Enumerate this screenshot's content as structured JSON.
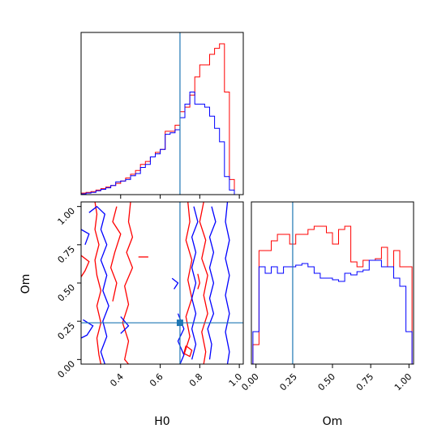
{
  "chart_data": [
    {
      "type": "histogram",
      "panel": "H0 marginal",
      "xlim": [
        0.2,
        1.02
      ],
      "bin_edges": [
        0.2,
        0.225,
        0.25,
        0.275,
        0.3,
        0.325,
        0.35,
        0.375,
        0.4,
        0.425,
        0.45,
        0.475,
        0.5,
        0.525,
        0.55,
        0.575,
        0.6,
        0.625,
        0.65,
        0.675,
        0.7,
        0.725,
        0.75,
        0.775,
        0.8,
        0.825,
        0.85,
        0.875,
        0.9,
        0.925,
        0.95,
        0.975,
        1.0
      ],
      "series": [
        {
          "color": "#ff0000",
          "values": [
            0.01,
            0.015,
            0.02,
            0.03,
            0.04,
            0.05,
            0.06,
            0.075,
            0.09,
            0.11,
            0.135,
            0.16,
            0.2,
            0.22,
            0.25,
            0.28,
            0.3,
            0.42,
            0.42,
            0.46,
            0.55,
            0.58,
            0.66,
            0.78,
            0.86,
            0.86,
            0.93,
            0.97,
            1.0,
            0.68,
            0.1,
            0.0
          ]
        },
        {
          "color": "#0000ff",
          "values": [
            0.005,
            0.01,
            0.015,
            0.025,
            0.035,
            0.045,
            0.06,
            0.085,
            0.09,
            0.1,
            0.125,
            0.14,
            0.18,
            0.2,
            0.25,
            0.27,
            0.3,
            0.4,
            0.41,
            0.43,
            0.51,
            0.6,
            0.68,
            0.6,
            0.6,
            0.58,
            0.52,
            0.44,
            0.35,
            0.12,
            0.03,
            0.0
          ]
        }
      ],
      "truth_line": 0.7
    },
    {
      "type": "histogram",
      "panel": "Om marginal",
      "xlim": [
        -0.03,
        1.03
      ],
      "ticks": [
        "0.00",
        "0.25",
        "0.50",
        "0.75",
        "1.00"
      ],
      "xlabel": "Om",
      "bin_edges": [
        -0.02,
        0.02,
        0.06,
        0.1,
        0.14,
        0.18,
        0.22,
        0.26,
        0.3,
        0.34,
        0.38,
        0.42,
        0.46,
        0.5,
        0.54,
        0.58,
        0.62,
        0.66,
        0.7,
        0.74,
        0.78,
        0.82,
        0.86,
        0.9,
        0.94,
        0.98,
        1.02
      ],
      "series": [
        {
          "color": "#ff0000",
          "values": [
            0.12,
            0.7,
            0.7,
            0.76,
            0.8,
            0.8,
            0.74,
            0.8,
            0.8,
            0.83,
            0.85,
            0.85,
            0.81,
            0.74,
            0.83,
            0.85,
            0.63,
            0.6,
            0.64,
            0.64,
            0.65,
            0.72,
            0.6,
            0.7,
            0.6,
            0.6
          ]
        },
        {
          "color": "#0000ff",
          "values": [
            0.2,
            0.6,
            0.56,
            0.6,
            0.56,
            0.6,
            0.6,
            0.61,
            0.62,
            0.6,
            0.56,
            0.53,
            0.53,
            0.52,
            0.51,
            0.56,
            0.55,
            0.57,
            0.58,
            0.64,
            0.64,
            0.6,
            0.6,
            0.53,
            0.48,
            0.2
          ]
        }
      ],
      "truth_line": 0.24
    },
    {
      "type": "contour",
      "panel": "H0 vs Om",
      "xlim": [
        0.2,
        1.02
      ],
      "ylim": [
        -0.03,
        1.03
      ],
      "xticks": [
        "0.4",
        "0.6",
        "0.8",
        "1.0"
      ],
      "yticks": [
        "0.00",
        "0.25",
        "0.50",
        "0.75",
        "1.00"
      ],
      "xlabel": "H0",
      "ylabel": "Om",
      "truth_point": [
        0.7,
        0.24
      ],
      "series": [
        {
          "color": "#ff0000",
          "contours": [
            [
              [
                0.27,
                1.03
              ],
              [
                0.28,
                0.95
              ],
              [
                0.27,
                0.85
              ],
              [
                0.29,
                0.75
              ],
              [
                0.27,
                0.65
              ],
              [
                0.28,
                0.55
              ],
              [
                0.3,
                0.45
              ],
              [
                0.28,
                0.35
              ],
              [
                0.3,
                0.24
              ],
              [
                0.28,
                0.14
              ],
              [
                0.29,
                0.03
              ],
              [
                0.3,
                -0.03
              ]
            ],
            [
              [
                0.45,
                1.03
              ],
              [
                0.44,
                0.9
              ],
              [
                0.46,
                0.8
              ],
              [
                0.43,
                0.7
              ],
              [
                0.46,
                0.6
              ],
              [
                0.42,
                0.48
              ],
              [
                0.44,
                0.36
              ],
              [
                0.41,
                0.24
              ],
              [
                0.44,
                0.12
              ],
              [
                0.42,
                0.0
              ],
              [
                0.44,
                -0.03
              ]
            ],
            [
              [
                0.38,
                1.0
              ],
              [
                0.36,
                0.9
              ],
              [
                0.4,
                0.82
              ],
              [
                0.37,
                0.7
              ],
              [
                0.35,
                0.6
              ],
              [
                0.38,
                0.5
              ],
              [
                0.36,
                0.38
              ]
            ],
            [
              [
                0.74,
                1.03
              ],
              [
                0.75,
                0.9
              ],
              [
                0.73,
                0.78
              ],
              [
                0.76,
                0.65
              ],
              [
                0.74,
                0.52
              ],
              [
                0.76,
                0.4
              ],
              [
                0.73,
                0.28
              ],
              [
                0.75,
                0.15
              ],
              [
                0.72,
                0.03
              ]
            ],
            [
              [
                0.82,
                1.03
              ],
              [
                0.8,
                0.9
              ],
              [
                0.83,
                0.78
              ],
              [
                0.81,
                0.66
              ],
              [
                0.84,
                0.55
              ],
              [
                0.82,
                0.42
              ],
              [
                0.84,
                0.3
              ],
              [
                0.81,
                0.18
              ],
              [
                0.83,
                0.05
              ],
              [
                0.82,
                -0.03
              ]
            ],
            [
              [
                0.2,
                0.68
              ],
              [
                0.24,
                0.64
              ],
              [
                0.22,
                0.58
              ],
              [
                0.2,
                0.54
              ]
            ],
            [
              [
                0.49,
                0.67
              ],
              [
                0.54,
                0.67
              ]
            ],
            [
              [
                0.73,
                0.09
              ],
              [
                0.76,
                0.06
              ],
              [
                0.75,
                0.02
              ],
              [
                0.72,
                0.04
              ],
              [
                0.73,
                0.09
              ]
            ],
            [
              [
                0.79,
                0.56
              ],
              [
                0.8,
                0.5
              ],
              [
                0.79,
                0.46
              ]
            ]
          ]
        },
        {
          "color": "#0000ff",
          "contours": [
            [
              [
                0.24,
                0.96
              ],
              [
                0.28,
                1.0
              ],
              [
                0.32,
                0.95
              ],
              [
                0.3,
                0.85
              ],
              [
                0.33,
                0.75
              ],
              [
                0.3,
                0.65
              ],
              [
                0.33,
                0.55
              ],
              [
                0.31,
                0.45
              ],
              [
                0.34,
                0.35
              ],
              [
                0.31,
                0.25
              ],
              [
                0.33,
                0.15
              ],
              [
                0.3,
                0.05
              ],
              [
                0.32,
                -0.03
              ]
            ],
            [
              [
                0.2,
                0.85
              ],
              [
                0.24,
                0.82
              ],
              [
                0.22,
                0.75
              ]
            ],
            [
              [
                0.21,
                0.26
              ],
              [
                0.26,
                0.22
              ],
              [
                0.23,
                0.16
              ],
              [
                0.2,
                0.14
              ]
            ],
            [
              [
                0.4,
                0.28
              ],
              [
                0.44,
                0.22
              ],
              [
                0.4,
                0.17
              ]
            ],
            [
              [
                0.69,
                0.3
              ],
              [
                0.72,
                0.2
              ],
              [
                0.69,
                0.12
              ],
              [
                0.72,
                0.03
              ],
              [
                0.7,
                -0.03
              ]
            ],
            [
              [
                0.66,
                0.53
              ],
              [
                0.69,
                0.5
              ],
              [
                0.67,
                0.46
              ]
            ],
            [
              [
                0.77,
                1.0
              ],
              [
                0.79,
                0.9
              ],
              [
                0.76,
                0.8
              ],
              [
                0.78,
                0.7
              ],
              [
                0.76,
                0.6
              ],
              [
                0.78,
                0.5
              ],
              [
                0.76,
                0.4
              ],
              [
                0.78,
                0.3
              ],
              [
                0.76,
                0.2
              ],
              [
                0.78,
                0.1
              ],
              [
                0.76,
                0.0
              ]
            ],
            [
              [
                0.86,
                1.0
              ],
              [
                0.88,
                0.9
              ],
              [
                0.85,
                0.8
              ],
              [
                0.87,
                0.7
              ],
              [
                0.85,
                0.6
              ],
              [
                0.87,
                0.5
              ],
              [
                0.85,
                0.4
              ],
              [
                0.87,
                0.3
              ],
              [
                0.84,
                0.2
              ],
              [
                0.86,
                0.1
              ],
              [
                0.85,
                0.0
              ]
            ],
            [
              [
                0.94,
                1.03
              ],
              [
                0.93,
                0.9
              ],
              [
                0.95,
                0.78
              ],
              [
                0.93,
                0.66
              ],
              [
                0.95,
                0.55
              ],
              [
                0.93,
                0.42
              ],
              [
                0.95,
                0.3
              ],
              [
                0.93,
                0.18
              ],
              [
                0.95,
                0.05
              ],
              [
                0.94,
                -0.03
              ]
            ]
          ]
        }
      ]
    }
  ]
}
